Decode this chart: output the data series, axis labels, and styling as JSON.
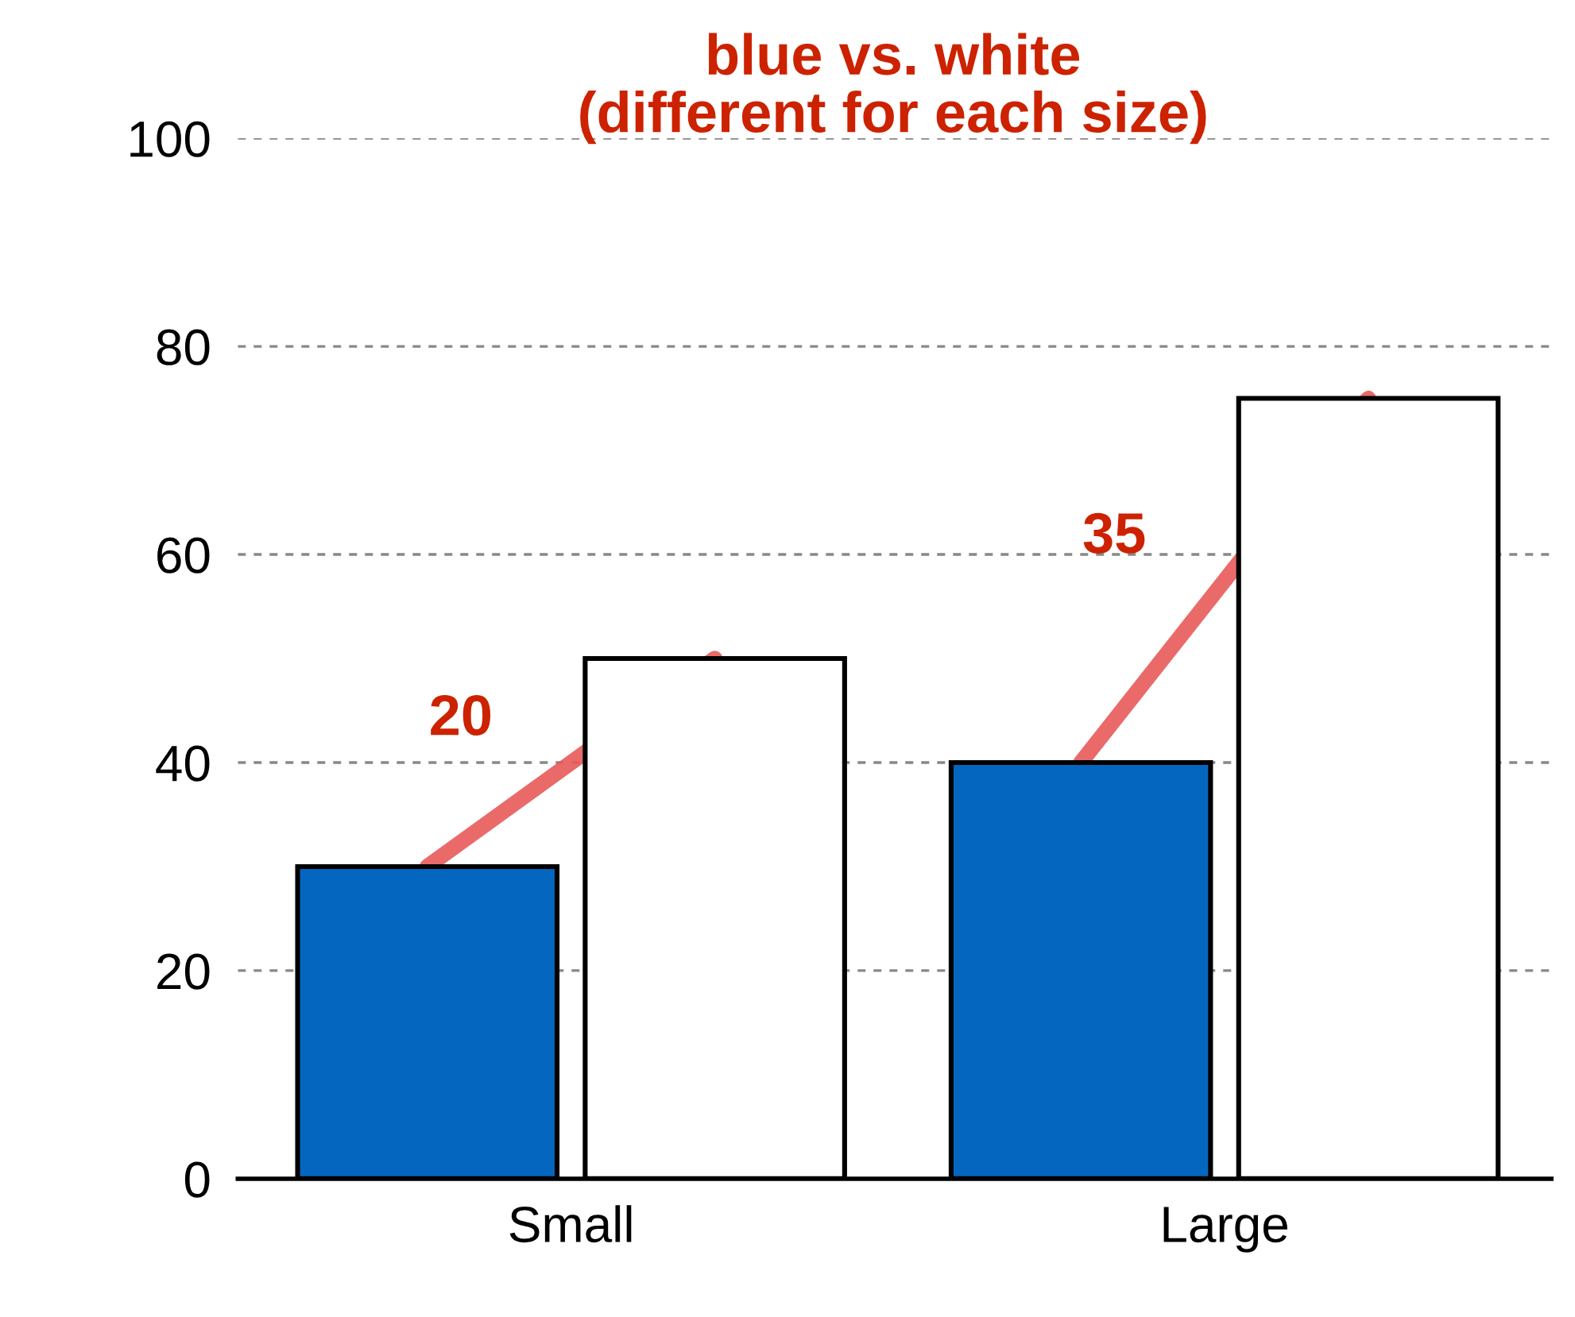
{
  "chart_data": {
    "type": "bar",
    "title": "blue vs. white\n(different for each size)",
    "categories": [
      "Small",
      "Large"
    ],
    "series": [
      {
        "color": "#0566c0",
        "values": [
          30,
          40
        ]
      },
      {
        "color": "#ffffff",
        "values": [
          50,
          75
        ]
      }
    ],
    "ylim": [
      0,
      100
    ],
    "yticks": [
      0,
      20,
      40,
      60,
      80,
      100
    ],
    "grid": "y",
    "legend": false,
    "annotations": [
      "20",
      "35"
    ]
  }
}
